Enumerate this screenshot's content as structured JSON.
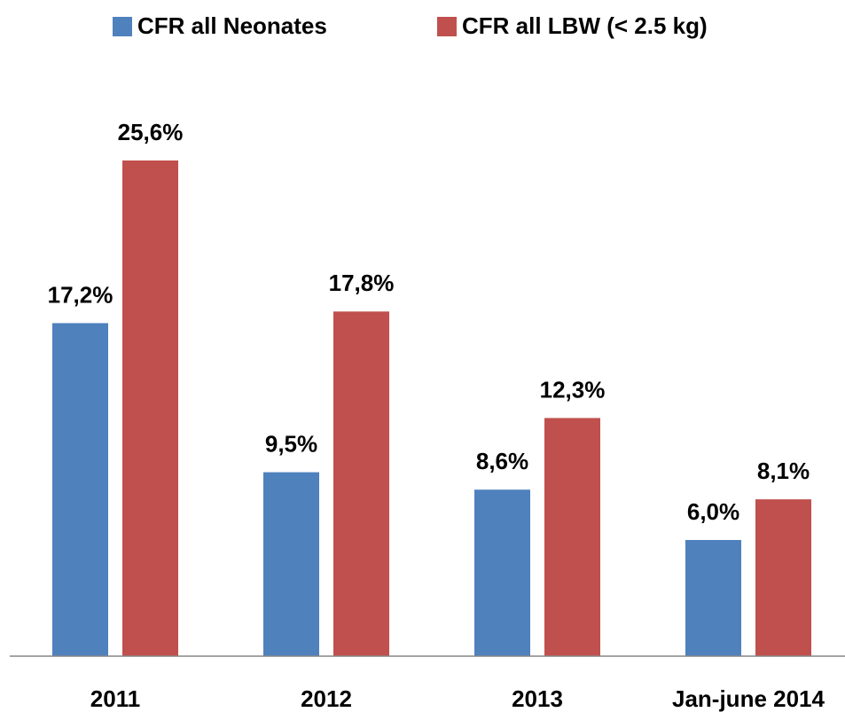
{
  "chart_data": {
    "type": "bar",
    "categories": [
      "2011",
      "2012",
      "2013",
      "Jan-june 2014"
    ],
    "series": [
      {
        "name": "CFR all Neonates",
        "color": "#4f81bd",
        "values": [
          17.2,
          9.5,
          8.6,
          6.0
        ],
        "value_labels": [
          "17,2%",
          "9,5%",
          "8,6%",
          "6,0%"
        ]
      },
      {
        "name": "CFR all LBW (< 2.5 kg)",
        "color": "#c0504d",
        "values": [
          25.6,
          17.8,
          12.3,
          8.1
        ],
        "value_labels": [
          "25,6%",
          "17,8%",
          "12,3%",
          "8,1%"
        ]
      }
    ],
    "legend": "top"
  }
}
